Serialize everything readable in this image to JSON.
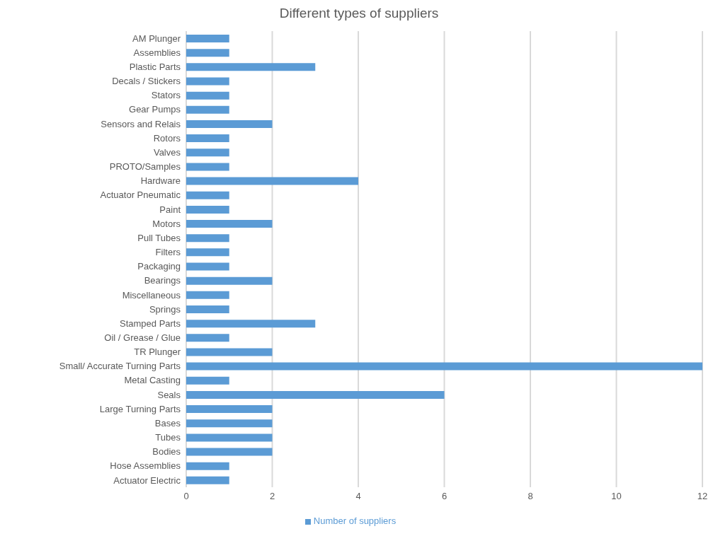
{
  "chart_data": {
    "type": "bar",
    "orientation": "horizontal",
    "title": "Different types of suppliers",
    "categories": [
      "AM Plunger",
      "Assemblies",
      "Plastic Parts",
      "Decals / Stickers",
      "Stators",
      "Gear Pumps",
      "Sensors and Relais",
      "Rotors",
      "Valves",
      "PROTO/Samples",
      "Hardware",
      "Actuator Pneumatic",
      "Paint",
      "Motors",
      "Pull Tubes",
      "Filters",
      "Packaging",
      "Bearings",
      "Miscellaneous",
      "Springs",
      "Stamped Parts",
      "Oil / Grease / Glue",
      "TR Plunger",
      "Small/ Accurate Turning Parts",
      "Metal Casting ",
      "Seals",
      "Large Turning Parts",
      "Bases",
      "Tubes",
      "Bodies",
      "Hose Assemblies",
      "Actuator Electric"
    ],
    "series": [
      {
        "name": "Number of suppliers",
        "color": "#5b9bd5",
        "values": [
          1,
          1,
          3,
          1,
          1,
          1,
          2,
          1,
          1,
          1,
          4,
          1,
          1,
          2,
          1,
          1,
          1,
          2,
          1,
          1,
          3,
          1,
          2,
          12,
          1,
          6,
          2,
          2,
          2,
          2,
          1,
          1
        ]
      }
    ],
    "xlim": [
      0,
      12
    ],
    "xticks": [
      0,
      2,
      4,
      6,
      8,
      10,
      12
    ],
    "grid": "x",
    "legend": "bottom"
  }
}
